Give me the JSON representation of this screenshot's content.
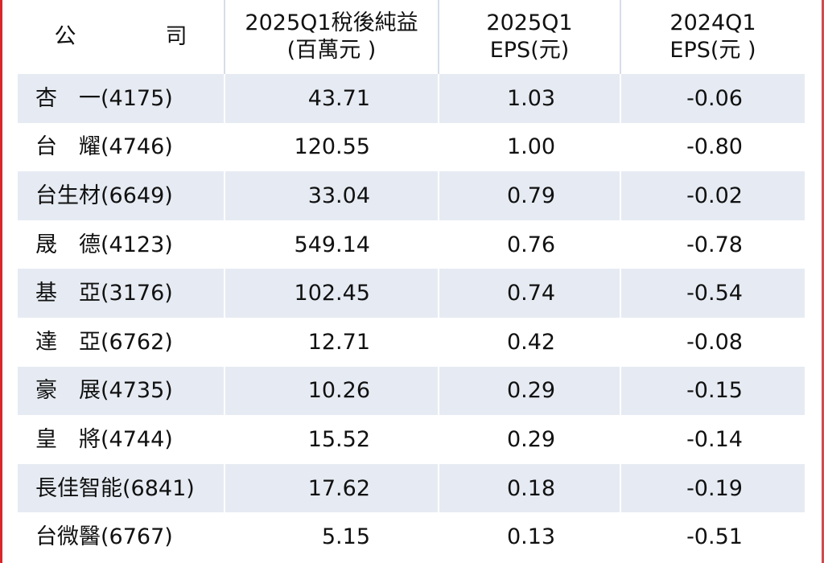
{
  "headers": {
    "company": "公　司",
    "profit_line1": "2025Q1稅後純益",
    "profit_line2": "(百萬元 )",
    "eps25_line1": "2025Q1",
    "eps25_line2": "EPS(元)",
    "eps24_line1": "2024Q1",
    "eps24_line2": "EPS(元 )"
  },
  "rows": [
    {
      "company": "杏　一(4175)",
      "profit": "43.71",
      "eps_2025q1": "1.03",
      "eps_2024q1": "-0.06"
    },
    {
      "company": "台　耀(4746)",
      "profit": "120.55",
      "eps_2025q1": "1.00",
      "eps_2024q1": "-0.80"
    },
    {
      "company": "台生材(6649)",
      "profit": "33.04",
      "eps_2025q1": "0.79",
      "eps_2024q1": "-0.02"
    },
    {
      "company": "晟　德(4123)",
      "profit": "549.14",
      "eps_2025q1": "0.76",
      "eps_2024q1": "-0.78"
    },
    {
      "company": "基　亞(3176)",
      "profit": "102.45",
      "eps_2025q1": "0.74",
      "eps_2024q1": "-0.54"
    },
    {
      "company": "達　亞(6762)",
      "profit": "12.71",
      "eps_2025q1": "0.42",
      "eps_2024q1": "-0.08"
    },
    {
      "company": "豪　展(4735)",
      "profit": "10.26",
      "eps_2025q1": "0.29",
      "eps_2024q1": "-0.15"
    },
    {
      "company": "皇　將(4744)",
      "profit": "15.52",
      "eps_2025q1": "0.29",
      "eps_2024q1": "-0.14"
    },
    {
      "company": "長佳智能(6841)",
      "profit": "17.62",
      "eps_2025q1": "0.18",
      "eps_2024q1": "-0.19"
    },
    {
      "company": "台微醫(6767)",
      "profit": "5.15",
      "eps_2025q1": "0.13",
      "eps_2024q1": "-0.51"
    }
  ],
  "colors": {
    "stripe": "#e6ebf3",
    "edge": "#d8262a"
  }
}
